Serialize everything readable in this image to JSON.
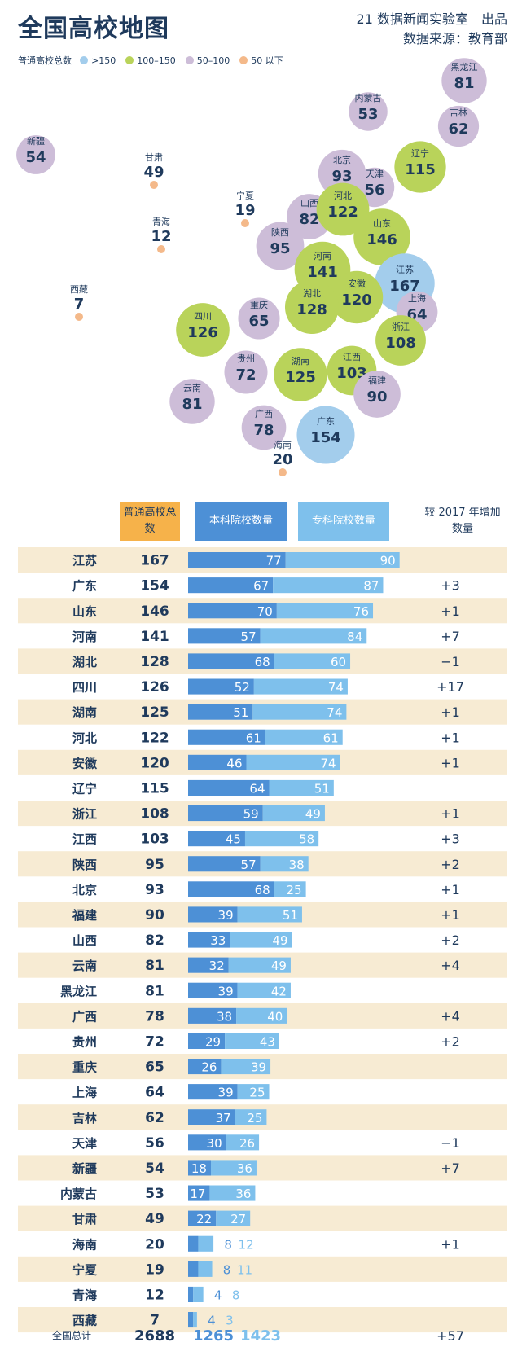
{
  "header": {
    "title": "全国高校地图",
    "credit_line1": "21 数据新闻实验室　出品",
    "credit_line2": "数据来源：教育部"
  },
  "legend": {
    "label": "普通高校总数",
    "items": [
      {
        "label": ">150",
        "color": "#a3cdec"
      },
      {
        "label": "100–150",
        "color": "#b9d35a"
      },
      {
        "label": "50–100",
        "color": "#cdbdd8"
      },
      {
        "label": "50 以下",
        "color": "#f4b98a"
      }
    ]
  },
  "table_headers": {
    "total": "普通高校总数",
    "ben": "本科院校数量",
    "zhuan": "专科院校数量",
    "inc": "较 2017 年增加数量"
  },
  "footer": {
    "label": "全国总计",
    "total": "2688",
    "ben": "1265",
    "zhuan": "1423",
    "inc": "+57"
  },
  "chart_data": [
    {
      "type": "scatter",
      "title": "全国高校地图",
      "points": [
        {
          "name": "黑龙江",
          "value": 81,
          "map": [
            570,
            94
          ]
        },
        {
          "name": "内蒙古",
          "value": 53,
          "map": [
            452,
            132
          ]
        },
        {
          "name": "吉林",
          "value": 62,
          "map": [
            563,
            150
          ]
        },
        {
          "name": "新疆",
          "value": 54,
          "map": [
            44,
            185
          ]
        },
        {
          "name": "甘肃",
          "value": 49,
          "map": [
            189,
            215
          ]
        },
        {
          "name": "北京",
          "value": 93,
          "map": [
            420,
            208
          ]
        },
        {
          "name": "辽宁",
          "value": 115,
          "map": [
            516,
            200
          ]
        },
        {
          "name": "天津",
          "value": 56,
          "map": [
            460,
            225
          ]
        },
        {
          "name": "宁夏",
          "value": 19,
          "map": [
            301,
            262
          ]
        },
        {
          "name": "山西",
          "value": 82,
          "map": [
            380,
            261
          ]
        },
        {
          "name": "河北",
          "value": 122,
          "map": [
            421,
            252
          ]
        },
        {
          "name": "青海",
          "value": 12,
          "map": [
            198,
            294
          ]
        },
        {
          "name": "陕西",
          "value": 95,
          "map": [
            344,
            297
          ]
        },
        {
          "name": "山东",
          "value": 146,
          "map": [
            469,
            286
          ]
        },
        {
          "name": "河南",
          "value": 141,
          "map": [
            396,
            326
          ]
        },
        {
          "name": "江苏",
          "value": 167,
          "map": [
            497,
            343
          ]
        },
        {
          "name": "安徽",
          "value": 120,
          "map": [
            438,
            360
          ]
        },
        {
          "name": "西藏",
          "value": 7,
          "map": [
            97,
            377
          ]
        },
        {
          "name": "重庆",
          "value": 65,
          "map": [
            318,
            386
          ]
        },
        {
          "name": "湖北",
          "value": 128,
          "map": [
            383,
            372
          ]
        },
        {
          "name": "四川",
          "value": 126,
          "map": [
            249,
            400
          ]
        },
        {
          "name": "上海",
          "value": 64,
          "map": [
            512,
            378
          ]
        },
        {
          "name": "浙江",
          "value": 108,
          "map": [
            492,
            413
          ]
        },
        {
          "name": "贵州",
          "value": 72,
          "map": [
            302,
            452
          ]
        },
        {
          "name": "湖南",
          "value": 125,
          "map": [
            369,
            455
          ]
        },
        {
          "name": "江西",
          "value": 103,
          "map": [
            432,
            450
          ]
        },
        {
          "name": "福建",
          "value": 90,
          "map": [
            463,
            479
          ]
        },
        {
          "name": "云南",
          "value": 81,
          "map": [
            236,
            488
          ]
        },
        {
          "name": "广西",
          "value": 78,
          "map": [
            324,
            520
          ]
        },
        {
          "name": "广东",
          "value": 154,
          "map": [
            400,
            529
          ]
        },
        {
          "name": "海南",
          "value": 20,
          "map": [
            347,
            568
          ]
        }
      ]
    },
    {
      "type": "bar",
      "categories": [
        "江苏",
        "广东",
        "山东",
        "河南",
        "湖北",
        "四川",
        "湖南",
        "河北",
        "安徽",
        "辽宁",
        "浙江",
        "江西",
        "陕西",
        "北京",
        "福建",
        "山西",
        "云南",
        "黑龙江",
        "广西",
        "贵州",
        "重庆",
        "上海",
        "吉林",
        "天津",
        "新疆",
        "内蒙古",
        "甘肃",
        "海南",
        "宁夏",
        "青海",
        "西藏"
      ],
      "totals": [
        167,
        154,
        146,
        141,
        128,
        126,
        125,
        122,
        120,
        115,
        108,
        103,
        95,
        93,
        90,
        82,
        81,
        81,
        78,
        72,
        65,
        64,
        62,
        56,
        54,
        53,
        49,
        20,
        19,
        12,
        7
      ],
      "series": [
        {
          "name": "本科院校数量",
          "color": "#4d90d6",
          "values": [
            77,
            67,
            70,
            57,
            68,
            52,
            51,
            61,
            46,
            64,
            59,
            45,
            57,
            68,
            39,
            33,
            32,
            39,
            38,
            29,
            26,
            39,
            37,
            30,
            18,
            17,
            22,
            8,
            8,
            4,
            4
          ]
        },
        {
          "name": "专科院校数量",
          "color": "#7ec0ec",
          "values": [
            90,
            87,
            76,
            84,
            60,
            74,
            74,
            61,
            74,
            51,
            49,
            58,
            38,
            25,
            51,
            49,
            49,
            42,
            40,
            43,
            39,
            25,
            25,
            26,
            36,
            36,
            27,
            12,
            11,
            8,
            3
          ]
        }
      ],
      "increase_vs_2017": [
        "",
        "+3",
        "+1",
        "+7",
        "−1",
        "+17",
        "+1",
        "+1",
        "+1",
        "",
        "+1",
        "+3",
        "+2",
        "+1",
        "+1",
        "+2",
        "+4",
        "",
        "+4",
        "+2",
        "",
        "",
        "",
        "−1",
        "+7",
        "",
        "",
        "+1",
        "",
        "",
        ""
      ]
    }
  ]
}
